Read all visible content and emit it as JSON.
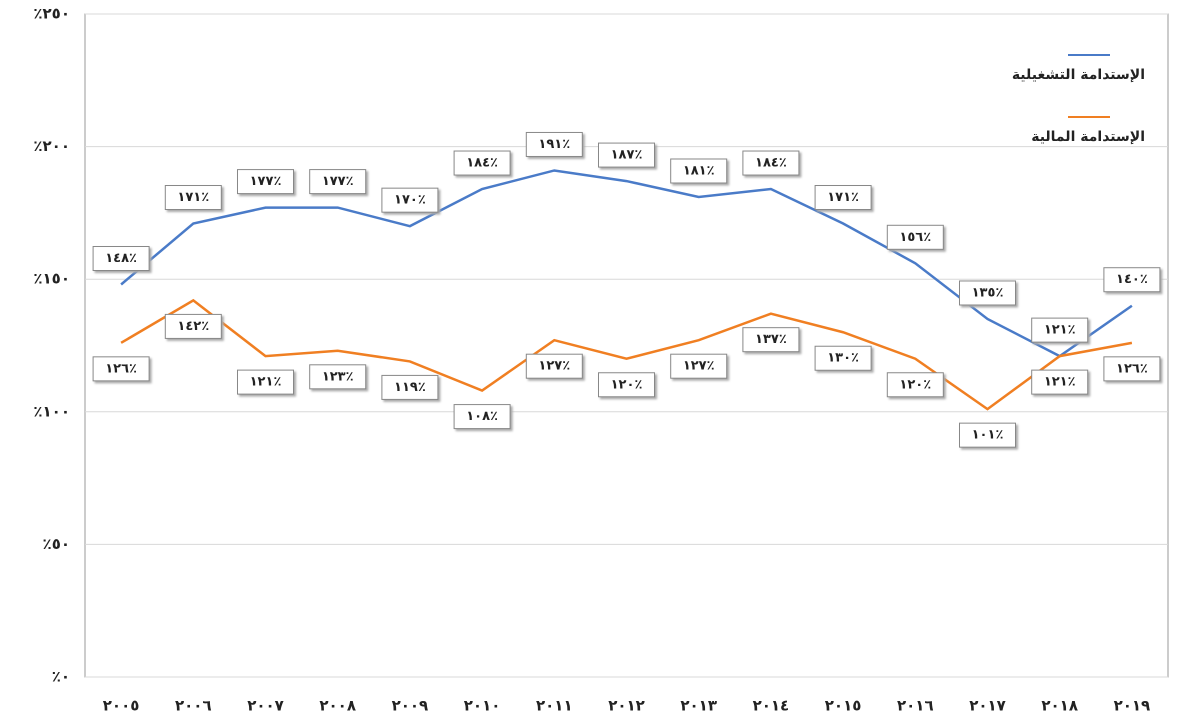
{
  "chart_data": {
    "type": "line",
    "categories": [
      "٢٠٠٥",
      "٢٠٠٦",
      "٢٠٠٧",
      "٢٠٠٨",
      "٢٠٠٩",
      "٢٠١٠",
      "٢٠١١",
      "٢٠١٢",
      "٢٠١٣",
      "٢٠١٤",
      "٢٠١٥",
      "٢٠١٦",
      "٢٠١٧",
      "٢٠١٨",
      "٢٠١٩"
    ],
    "series": [
      {
        "name": "الإستدامة التشغيلية",
        "color": "#4a7bc8",
        "values": [
          148,
          171,
          177,
          177,
          170,
          184,
          191,
          187,
          181,
          184,
          171,
          156,
          135,
          121,
          140
        ],
        "value_labels": [
          "١٤٨٪",
          "١٧١٪",
          "١٧٧٪",
          "١٧٧٪",
          "١٧٠٪",
          "١٨٤٪",
          "١٩١٪",
          "١٨٧٪",
          "١٨١٪",
          "١٨٤٪",
          "١٧١٪",
          "١٥٦٪",
          "١٣٥٪",
          "١٢١٪",
          "١٤٠٪"
        ]
      },
      {
        "name": "الإستدامة المالية",
        "color": "#f07f22",
        "values": [
          126,
          142,
          121,
          123,
          119,
          108,
          127,
          120,
          127,
          137,
          130,
          120,
          101,
          121,
          126
        ],
        "value_labels": [
          "١٢٦٪",
          "١٤٢٪",
          "١٢١٪",
          "١٢٣٪",
          "١١٩٪",
          "١٠٨٪",
          "١٢٧٪",
          "١٢٠٪",
          "١٢٧٪",
          "١٣٧٪",
          "١٣٠٪",
          "١٢٠٪",
          "١٠١٪",
          "١٢١٪",
          "١٢٦٪"
        ]
      }
    ],
    "ylim": [
      0,
      250
    ],
    "yticks": [
      {
        "value": 0,
        "label": "٪٠"
      },
      {
        "value": 50,
        "label": "٪٥٠"
      },
      {
        "value": 100,
        "label": "٪١٠٠"
      },
      {
        "value": 150,
        "label": "٪١٥٠"
      },
      {
        "value": 200,
        "label": "٪٢٠٠"
      },
      {
        "value": 250,
        "label": "٪٢٥٠"
      }
    ],
    "grid": true,
    "legend": "top-right"
  }
}
